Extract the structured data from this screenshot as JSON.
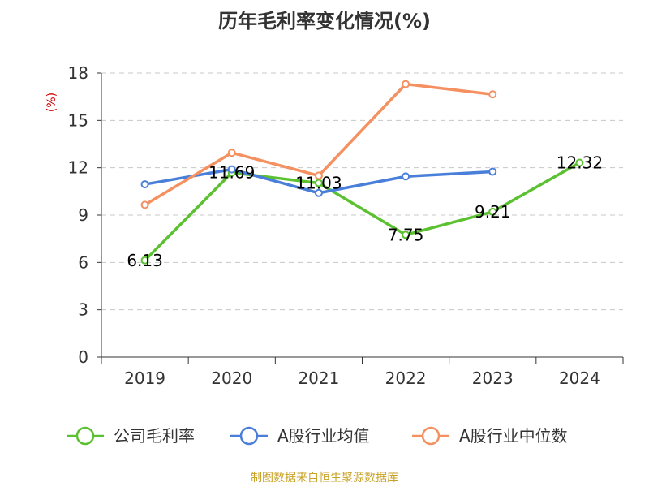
{
  "chart_data": {
    "type": "line",
    "title": "历年毛利率变化情况(%)",
    "ylabel": "(%)",
    "categories": [
      "2019",
      "2020",
      "2021",
      "2022",
      "2023",
      "2024"
    ],
    "ylim": [
      0,
      18
    ],
    "yticks": [
      0,
      3,
      6,
      9,
      12,
      15,
      18
    ],
    "grid": true,
    "legend_position": "bottom",
    "series": [
      {
        "name": "公司毛利率",
        "color": "#5cc130",
        "values": [
          6.13,
          11.69,
          11.03,
          7.75,
          9.21,
          12.32
        ],
        "labels": [
          "6.13",
          "11.69",
          "11.03",
          "7.75",
          "9.21",
          "12.32"
        ]
      },
      {
        "name": "A股行业均值",
        "color": "#4a7fd9",
        "values": [
          10.95,
          11.9,
          10.4,
          11.45,
          11.75,
          null
        ],
        "labels": []
      },
      {
        "name": "A股行业中位数",
        "color": "#f59060",
        "values": [
          9.65,
          12.95,
          11.5,
          17.3,
          16.65,
          null
        ],
        "labels": []
      }
    ]
  },
  "source": "制图数据来自恒生聚源数据库"
}
